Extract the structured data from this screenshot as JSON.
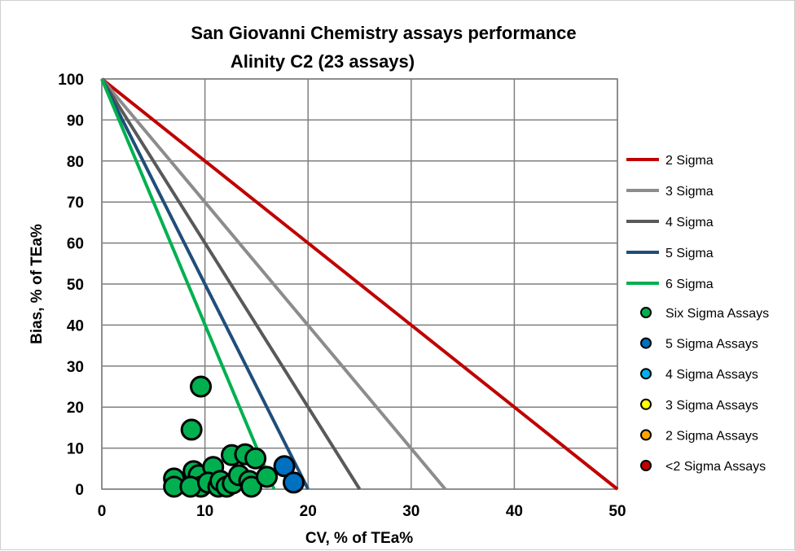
{
  "chart_data": {
    "type": "scatter",
    "title": "San Giovanni Chemistry assays performance",
    "subtitle": "Alinity C2 (23 assays)",
    "xlabel": "CV, % of TEa%",
    "ylabel": "Bias, % of TEa%",
    "xlim": [
      0,
      50
    ],
    "ylim": [
      0,
      100
    ],
    "xticks": [
      "0",
      "10",
      "20",
      "30",
      "40",
      "50"
    ],
    "yticks": [
      "0",
      "10",
      "20",
      "30",
      "40",
      "50",
      "60",
      "70",
      "80",
      "90",
      "100"
    ],
    "grid": true,
    "legend_position": "right",
    "lines": [
      {
        "name": "2 Sigma",
        "color": "#C00000",
        "x": [
          0,
          50
        ],
        "y": [
          100,
          0
        ]
      },
      {
        "name": "3 Sigma",
        "color": "#8C8C8C",
        "x": [
          0,
          33.3
        ],
        "y": [
          100,
          0
        ]
      },
      {
        "name": "4 Sigma",
        "color": "#595959",
        "x": [
          0,
          25
        ],
        "y": [
          100,
          0
        ]
      },
      {
        "name": "5 Sigma",
        "color": "#1F4E79",
        "x": [
          0,
          20
        ],
        "y": [
          100,
          0
        ]
      },
      {
        "name": "6 Sigma",
        "color": "#00B050",
        "x": [
          0,
          16.7
        ],
        "y": [
          100,
          0
        ]
      }
    ],
    "series": [
      {
        "name": "Six Sigma Assays",
        "color": "#00B050",
        "points": [
          [
            9.6,
            25
          ],
          [
            8.7,
            14.5
          ],
          [
            7.0,
            2.6
          ],
          [
            7.0,
            0.6
          ],
          [
            8.9,
            4.4
          ],
          [
            9.4,
            3.4
          ],
          [
            9.6,
            0.6
          ],
          [
            8.6,
            0.6
          ],
          [
            10.8,
            5.4
          ],
          [
            10.3,
            1.6
          ],
          [
            11.3,
            0.6
          ],
          [
            11.5,
            2.0
          ],
          [
            12.1,
            0.6
          ],
          [
            12.7,
            1.4
          ],
          [
            13.3,
            3.4
          ],
          [
            12.6,
            8.3
          ],
          [
            13.9,
            8.5
          ],
          [
            14.9,
            7.5
          ],
          [
            14.3,
            2.0
          ],
          [
            14.5,
            0.6
          ],
          [
            16.0,
            3.0
          ]
        ]
      },
      {
        "name": "5 Sigma Assays",
        "color": "#0070C0",
        "points": [
          [
            17.7,
            5.6
          ],
          [
            18.6,
            1.6
          ]
        ]
      },
      {
        "name": "4 Sigma Assays",
        "color": "#00B0F0",
        "points": []
      },
      {
        "name": "3 Sigma Assays",
        "color": "#FFFF00",
        "points": []
      },
      {
        "name": "2 Sigma Assays",
        "color": "#FFA500",
        "points": []
      },
      {
        "name": "<2 Sigma Assays",
        "color": "#C00000",
        "points": []
      }
    ]
  }
}
